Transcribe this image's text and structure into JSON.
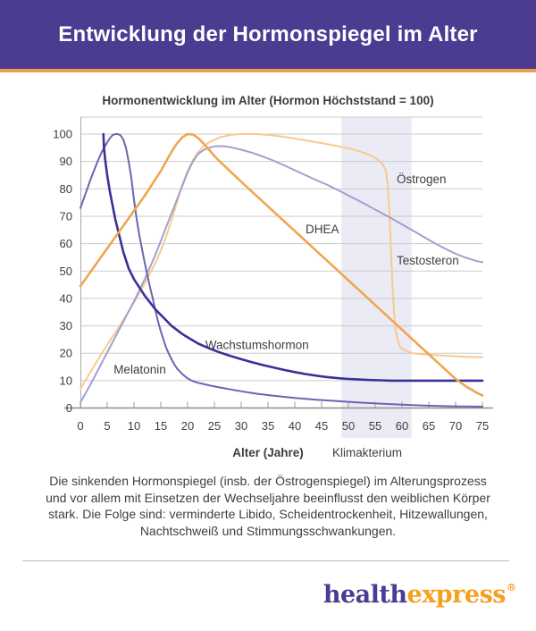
{
  "header": {
    "title": "Entwicklung der Hormonspiegel im Alter",
    "bg_color": "#4b3c92",
    "accent_color": "#e8a050"
  },
  "chart_data": {
    "type": "line",
    "title": "Hormonentwicklung im Alter (Hormon Höchststand = 100)",
    "xlabel": "Alter (Jahre)",
    "ylabel": "",
    "xlim": [
      0,
      75
    ],
    "ylim": [
      0,
      100
    ],
    "xticks": [
      0,
      5,
      10,
      15,
      20,
      25,
      30,
      35,
      40,
      45,
      50,
      55,
      60,
      65,
      70,
      75
    ],
    "yticks": [
      0,
      10,
      20,
      30,
      40,
      50,
      60,
      70,
      80,
      90,
      100
    ],
    "grid": "horizontal",
    "legend_position": "inline-labels",
    "band": {
      "label": "Klimakterium",
      "x_start": 48.7,
      "x_end": 61.8,
      "label_at_x": 53.5,
      "color": "#ebebf5"
    },
    "series": [
      {
        "name": "Östrogen",
        "color": "#f7ca8e",
        "width": 2,
        "label_at": {
          "x": 59,
          "y": 82
        },
        "points": [
          [
            0,
            7
          ],
          [
            2,
            13.5
          ],
          [
            4,
            20
          ],
          [
            6,
            26
          ],
          [
            8,
            32
          ],
          [
            10,
            38.5
          ],
          [
            12,
            45.5
          ],
          [
            14,
            53
          ],
          [
            15,
            57.5
          ],
          [
            16,
            62.5
          ],
          [
            17,
            68.5
          ],
          [
            18,
            75
          ],
          [
            19,
            81.5
          ],
          [
            20,
            86.5
          ],
          [
            21,
            90.5
          ],
          [
            22,
            93.5
          ],
          [
            23,
            95.5
          ],
          [
            24,
            97
          ],
          [
            26,
            98.8
          ],
          [
            28,
            99.7
          ],
          [
            30,
            100
          ],
          [
            33,
            100
          ],
          [
            36,
            99.5
          ],
          [
            39,
            98.7
          ],
          [
            42,
            97.7
          ],
          [
            45,
            96.7
          ],
          [
            48,
            95.6
          ],
          [
            50,
            94.8
          ],
          [
            52,
            93.8
          ],
          [
            54,
            92.3
          ],
          [
            55,
            91.3
          ],
          [
            56,
            89.8
          ],
          [
            56.5,
            88.7
          ],
          [
            57,
            86.5
          ],
          [
            57.3,
            82
          ],
          [
            57.6,
            73
          ],
          [
            57.9,
            60
          ],
          [
            58.2,
            46
          ],
          [
            58.5,
            35
          ],
          [
            58.8,
            28.5
          ],
          [
            59.2,
            24.5
          ],
          [
            59.6,
            22.5
          ],
          [
            60,
            21.6
          ],
          [
            61,
            20.6
          ],
          [
            62,
            20
          ],
          [
            64,
            19.6
          ],
          [
            66,
            19.3
          ],
          [
            68,
            19.1
          ],
          [
            70,
            18.9
          ],
          [
            72,
            18.7
          ],
          [
            75,
            18.5
          ]
        ]
      },
      {
        "name": "Testosteron",
        "color": "#a49fd2",
        "width": 2,
        "label_at": {
          "x": 59,
          "y": 52.3
        },
        "points": [
          [
            0,
            2
          ],
          [
            2,
            9
          ],
          [
            4,
            16.5
          ],
          [
            6,
            24
          ],
          [
            8,
            31.5
          ],
          [
            10,
            39
          ],
          [
            12,
            47
          ],
          [
            14,
            56
          ],
          [
            16,
            66
          ],
          [
            17,
            71
          ],
          [
            18,
            76
          ],
          [
            19,
            81
          ],
          [
            20,
            86
          ],
          [
            21,
            90
          ],
          [
            22,
            92.8
          ],
          [
            23,
            94.2
          ],
          [
            24,
            95
          ],
          [
            25,
            95.5
          ],
          [
            26,
            95.6
          ],
          [
            27,
            95.5
          ],
          [
            28,
            95.2
          ],
          [
            30,
            94.3
          ],
          [
            32,
            93.2
          ],
          [
            34,
            91.8
          ],
          [
            36,
            90.3
          ],
          [
            38,
            88.6
          ],
          [
            40,
            86.8
          ],
          [
            42,
            85
          ],
          [
            44,
            83.2
          ],
          [
            46,
            81.5
          ],
          [
            48,
            79.6
          ],
          [
            50,
            77.6
          ],
          [
            52,
            75.6
          ],
          [
            54,
            73.5
          ],
          [
            56,
            71.4
          ],
          [
            58,
            69.3
          ],
          [
            60,
            67
          ],
          [
            62,
            64.8
          ],
          [
            64,
            62.5
          ],
          [
            66,
            60.3
          ],
          [
            68,
            58.2
          ],
          [
            70,
            56.3
          ],
          [
            72,
            54.8
          ],
          [
            74,
            53.6
          ],
          [
            75,
            53.2
          ]
        ]
      },
      {
        "name": "Melatonin",
        "color": "#6c64b2",
        "width": 2,
        "label_at": {
          "x": 6.2,
          "y": 12.6
        },
        "points": [
          [
            0,
            73
          ],
          [
            1,
            78.5
          ],
          [
            2,
            84
          ],
          [
            3,
            89
          ],
          [
            4,
            93.5
          ],
          [
            5,
            97
          ],
          [
            5.5,
            98.5
          ],
          [
            6,
            99.6
          ],
          [
            6.5,
            100
          ],
          [
            7,
            100
          ],
          [
            7.5,
            99.5
          ],
          [
            8,
            98
          ],
          [
            8.5,
            95
          ],
          [
            9,
            90
          ],
          [
            9.5,
            84
          ],
          [
            10,
            76
          ],
          [
            10.5,
            69
          ],
          [
            11,
            63
          ],
          [
            11.5,
            58
          ],
          [
            12,
            53
          ],
          [
            12.5,
            48.5
          ],
          [
            13,
            44
          ],
          [
            13.5,
            40
          ],
          [
            14,
            35.5
          ],
          [
            14.5,
            31.5
          ],
          [
            15,
            28
          ],
          [
            15.5,
            25
          ],
          [
            16,
            22
          ],
          [
            16.5,
            19.8
          ],
          [
            17,
            17.8
          ],
          [
            17.5,
            16
          ],
          [
            18,
            14.5
          ],
          [
            19,
            12.4
          ],
          [
            20,
            10.8
          ],
          [
            21,
            9.8
          ],
          [
            22,
            9.2
          ],
          [
            24,
            8.3
          ],
          [
            26,
            7.5
          ],
          [
            28,
            6.8
          ],
          [
            30,
            6.1
          ],
          [
            33,
            5.2
          ],
          [
            36,
            4.5
          ],
          [
            40,
            3.7
          ],
          [
            44,
            3
          ],
          [
            48,
            2.5
          ],
          [
            52,
            2
          ],
          [
            56,
            1.6
          ],
          [
            60,
            1.2
          ],
          [
            64,
            0.9
          ],
          [
            68,
            0.7
          ],
          [
            72,
            0.55
          ],
          [
            75,
            0.5
          ]
        ]
      },
      {
        "name": "Wachstumshormon",
        "color": "#3a3197",
        "width": 2.6,
        "label_at": {
          "x": 23.3,
          "y": 21.5
        },
        "points": [
          [
            4.3,
            100
          ],
          [
            4.4,
            95
          ],
          [
            4.6,
            91
          ],
          [
            5,
            85
          ],
          [
            5.5,
            79
          ],
          [
            6,
            74
          ],
          [
            6.5,
            69
          ],
          [
            7,
            65
          ],
          [
            7.5,
            61
          ],
          [
            8,
            57
          ],
          [
            8.5,
            54
          ],
          [
            9,
            51
          ],
          [
            9.5,
            49
          ],
          [
            10,
            47
          ],
          [
            11,
            44
          ],
          [
            12,
            41
          ],
          [
            13,
            38.5
          ],
          [
            14,
            36
          ],
          [
            15,
            34
          ],
          [
            16,
            32
          ],
          [
            17,
            30
          ],
          [
            18,
            28.5
          ],
          [
            19,
            27
          ],
          [
            20,
            25.8
          ],
          [
            22,
            23.5
          ],
          [
            24,
            21.8
          ],
          [
            26,
            20.3
          ],
          [
            28,
            19
          ],
          [
            30,
            17.8
          ],
          [
            32,
            16.7
          ],
          [
            34,
            15.7
          ],
          [
            36,
            14.8
          ],
          [
            38,
            13.9
          ],
          [
            40,
            13.1
          ],
          [
            42,
            12.4
          ],
          [
            44,
            11.8
          ],
          [
            46,
            11.3
          ],
          [
            48,
            10.9
          ],
          [
            50,
            10.6
          ],
          [
            52,
            10.4
          ],
          [
            54,
            10.2
          ],
          [
            56,
            10.1
          ],
          [
            58,
            10
          ],
          [
            65,
            10
          ],
          [
            75,
            10
          ]
        ]
      },
      {
        "name": "DHEA",
        "color": "#f0a64f",
        "width": 2.6,
        "label_at": {
          "x": 42,
          "y": 63.8
        },
        "points": [
          [
            0,
            44.5
          ],
          [
            2,
            50
          ],
          [
            4,
            55.5
          ],
          [
            6,
            61
          ],
          [
            8,
            66.5
          ],
          [
            10,
            72
          ],
          [
            12,
            77.5
          ],
          [
            14,
            83.5
          ],
          [
            15,
            86.5
          ],
          [
            16,
            90
          ],
          [
            17,
            93.5
          ],
          [
            18,
            96.5
          ],
          [
            19,
            98.8
          ],
          [
            20,
            100
          ],
          [
            21,
            99.8
          ],
          [
            22,
            98.5
          ],
          [
            23,
            96.5
          ],
          [
            24,
            94.3
          ],
          [
            25,
            92
          ],
          [
            26,
            90
          ],
          [
            28,
            86.3
          ],
          [
            30,
            82.6
          ],
          [
            32,
            79
          ],
          [
            34,
            75.4
          ],
          [
            36,
            71.8
          ],
          [
            38,
            68.2
          ],
          [
            40,
            64.6
          ],
          [
            42,
            61
          ],
          [
            44,
            57.4
          ],
          [
            46,
            53.8
          ],
          [
            48,
            50.2
          ],
          [
            50,
            46.6
          ],
          [
            52,
            43
          ],
          [
            54,
            39.4
          ],
          [
            56,
            35.8
          ],
          [
            58,
            32.2
          ],
          [
            60,
            28.6
          ],
          [
            62,
            25
          ],
          [
            64,
            21.4
          ],
          [
            66,
            17.8
          ],
          [
            68,
            14.2
          ],
          [
            70,
            10.6
          ],
          [
            72,
            7.8
          ],
          [
            74,
            5.5
          ],
          [
            75,
            4.6
          ]
        ]
      }
    ]
  },
  "description": {
    "lines": [
      "Die sinkenden Hormonspiegel (insb. der Östrogenspiegel) im Alterungsprozess",
      "und vor allem mit Einsetzen der Wechseljahre beeinflusst den weiblichen Körper",
      "stark. Die Folge sind: verminderte Libido, Scheidentrockenheit, Hitzewallungen,",
      "Nachtschweiß und Stimmungsschwankungen."
    ]
  },
  "logo": {
    "part1": "health",
    "part2": "express",
    "registered": "®",
    "color1": "#4c3a93",
    "color2": "#f5a01f"
  }
}
